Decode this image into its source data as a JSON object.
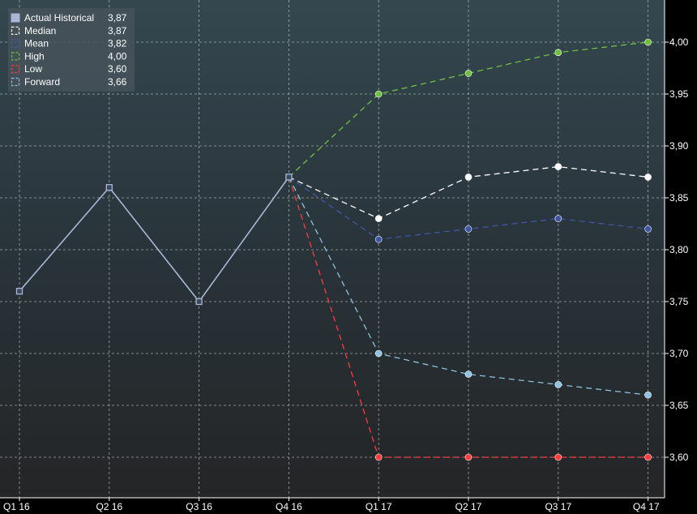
{
  "chart_data": {
    "type": "line",
    "categories": [
      "Q1 16",
      "Q2 16",
      "Q3 16",
      "Q4 16",
      "Q1 17",
      "Q2 17",
      "Q3 17",
      "Q4 17"
    ],
    "ylim": [
      3.56,
      4.04
    ],
    "y_ticks": [
      "3,60",
      "3,65",
      "3,70",
      "3,75",
      "3,80",
      "3,85",
      "3,90",
      "3,95",
      "4,00"
    ],
    "grid": true,
    "legend_position": "top-left",
    "series": [
      {
        "name": "Actual Historical",
        "legend_value": "3,87",
        "color": "#a9b6d6",
        "dash": false,
        "marker": "square",
        "values": [
          3.76,
          3.86,
          3.75,
          3.87,
          null,
          null,
          null,
          null
        ]
      },
      {
        "name": "Median",
        "legend_value": "3,87",
        "color": "#ffffff",
        "dash": true,
        "marker": "circle",
        "values": [
          null,
          null,
          null,
          3.87,
          3.83,
          3.87,
          3.88,
          3.87
        ]
      },
      {
        "name": "Mean",
        "legend_value": "3,82",
        "color": "#3d57a6",
        "dash": true,
        "marker": "circle",
        "values": [
          null,
          null,
          null,
          3.87,
          3.81,
          3.82,
          3.83,
          3.82
        ]
      },
      {
        "name": "High",
        "legend_value": "4,00",
        "color": "#6ec13f",
        "dash": true,
        "marker": "circle",
        "values": [
          null,
          null,
          null,
          3.87,
          3.95,
          3.97,
          3.99,
          4.0
        ]
      },
      {
        "name": "Low",
        "legend_value": "3,60",
        "color": "#ff3b3b",
        "dash": true,
        "marker": "circle",
        "values": [
          null,
          null,
          null,
          3.87,
          3.6,
          3.6,
          3.6,
          3.6
        ]
      },
      {
        "name": "Forward",
        "legend_value": "3,66",
        "color": "#8cc3e0",
        "dash": true,
        "marker": "circle",
        "values": [
          null,
          null,
          null,
          3.87,
          3.7,
          3.68,
          3.67,
          3.66
        ]
      }
    ]
  }
}
